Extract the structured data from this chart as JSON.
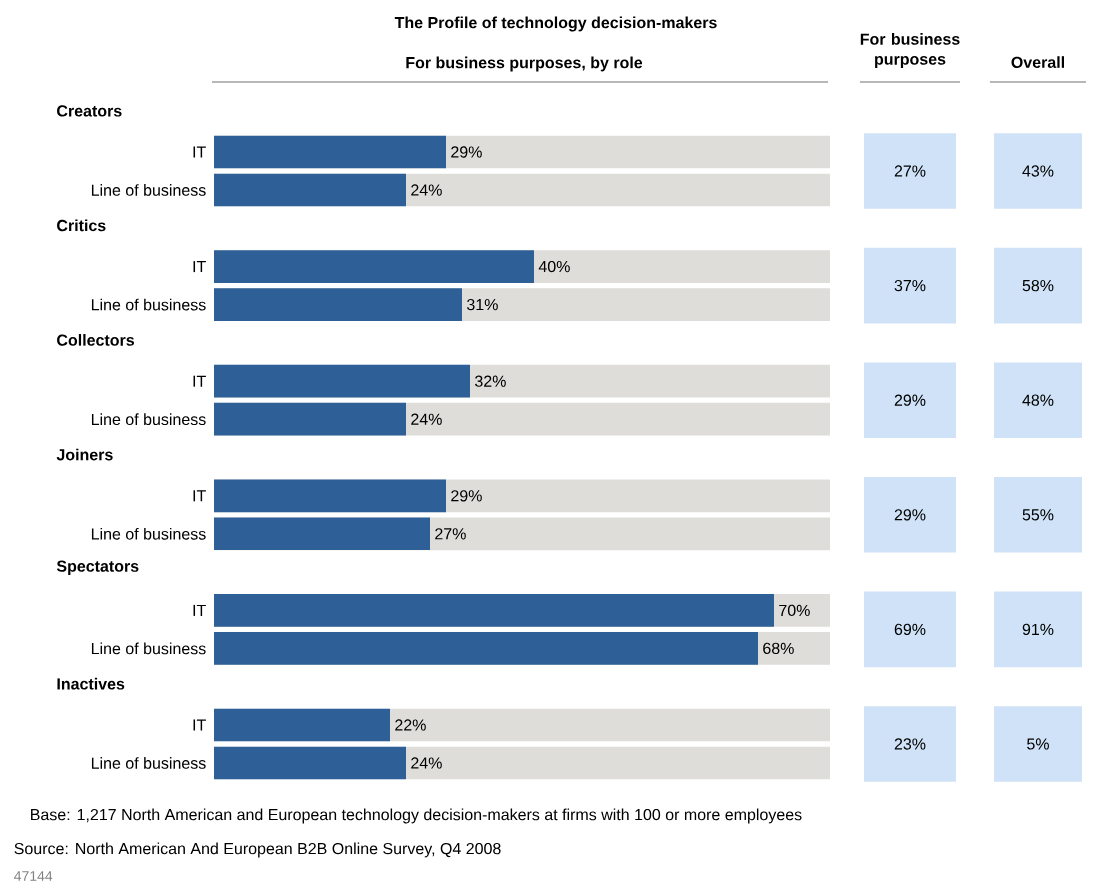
{
  "chart_data": [
    {
      "type": "other",
      "title": "The Profile of technology decision-makers",
      "subtitle": "For business purposes, by role",
      "annotations": [
        "Base: 1,217 North American and European technology decision-makers at firms with 100 or more employees",
        "Source: North American And European B2B Online Survey, Q4 2008",
        "47144"
      ]
    },
    {
      "type": "bar",
      "orientation": "horizontal",
      "title": "Creators",
      "categories": [
        "IT",
        "Line of business"
      ],
      "values": [
        29,
        24
      ],
      "value_labels": [
        "29%",
        "24%"
      ],
      "color": "#2e5f96",
      "xlim": [
        0,
        77
      ],
      "tick_labels": "y"
    },
    {
      "type": "bar",
      "orientation": "horizontal",
      "title": "Critics",
      "categories": [
        "IT",
        "Line of business"
      ],
      "values": [
        40,
        31
      ],
      "value_labels": [
        "40%",
        "31%"
      ],
      "color": "#2e5f96",
      "xlim": [
        0,
        77
      ],
      "tick_labels": "y"
    },
    {
      "type": "bar",
      "orientation": "horizontal",
      "title": "Collectors",
      "categories": [
        "IT",
        "Line of business"
      ],
      "values": [
        32,
        24
      ],
      "value_labels": [
        "32%",
        "24%"
      ],
      "color": "#2e5f96",
      "xlim": [
        0,
        77
      ],
      "tick_labels": "y"
    },
    {
      "type": "bar",
      "orientation": "horizontal",
      "title": "Joiners",
      "categories": [
        "IT",
        "Line of business"
      ],
      "values": [
        29,
        27
      ],
      "value_labels": [
        "29%",
        "27%"
      ],
      "color": "#2e5f96",
      "xlim": [
        0,
        77
      ],
      "tick_labels": "y"
    },
    {
      "type": "bar",
      "orientation": "horizontal",
      "title": "Spectators",
      "categories": [
        "IT",
        "Line of business"
      ],
      "values": [
        70,
        68
      ],
      "value_labels": [
        "70%",
        "68%"
      ],
      "color": "#2e5f96",
      "xlim": [
        0,
        77
      ],
      "tick_labels": "y"
    },
    {
      "type": "bar",
      "orientation": "horizontal",
      "title": "Inactives",
      "categories": [
        "IT",
        "Line of business"
      ],
      "values": [
        22,
        24
      ],
      "value_labels": [
        "22%",
        "24%"
      ],
      "color": "#2e5f96",
      "xlim": [
        0,
        77
      ],
      "tick_labels": "y"
    },
    {
      "type": "other",
      "title": "For business purposes",
      "categories": [
        null,
        null,
        null,
        null,
        null,
        null
      ],
      "values": [
        27,
        37,
        29,
        29,
        69,
        23
      ],
      "value_labels": [
        "27%",
        "37%",
        "29%",
        "29%",
        "69%",
        "23%"
      ],
      "color": "#cfe2f7"
    },
    {
      "type": "other",
      "title": "Overall",
      "categories": [
        null,
        null,
        null,
        null,
        null,
        null
      ],
      "values": [
        43,
        58,
        48,
        55,
        91,
        5
      ],
      "value_labels": [
        "43%",
        "58%",
        "48%",
        "55%",
        "91%",
        "5%"
      ],
      "color": "#cfe2f7"
    }
  ]
}
